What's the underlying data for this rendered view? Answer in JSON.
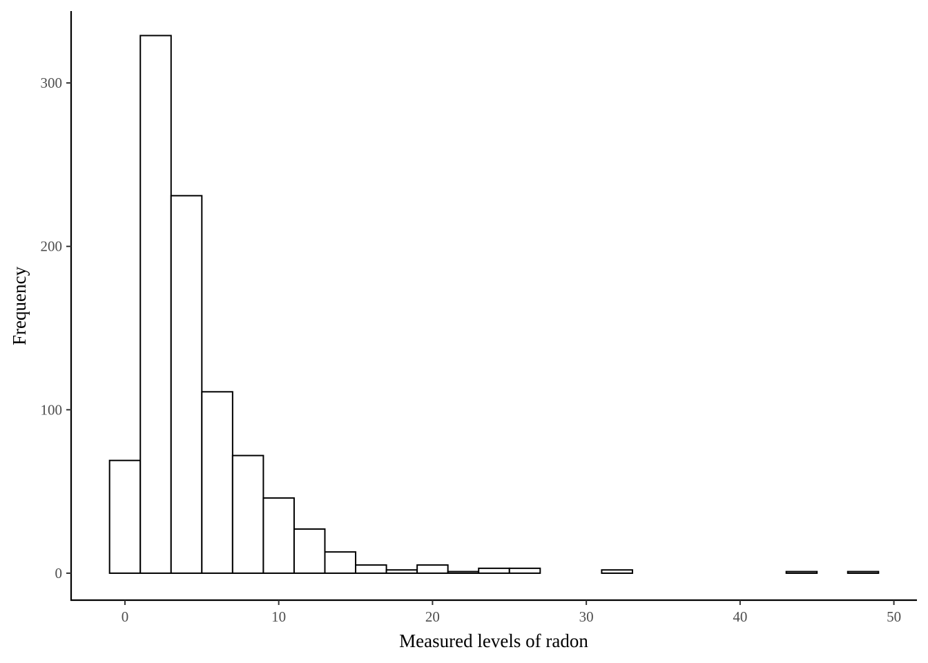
{
  "chart_data": {
    "type": "bar",
    "chart_kind": "histogram",
    "title": "",
    "xlabel": "Measured levels of radon",
    "ylabel": "Frequency",
    "xlim": [
      -3.5,
      51.5
    ],
    "ylim": [
      -16.5,
      344
    ],
    "x_ticks": [
      0,
      10,
      20,
      30,
      40,
      50
    ],
    "x_tick_labels": [
      "0",
      "10",
      "20",
      "30",
      "40",
      "50"
    ],
    "y_ticks": [
      0,
      100,
      200,
      300
    ],
    "y_tick_labels": [
      "0",
      "100",
      "200",
      "300"
    ],
    "bin_width": 2,
    "bins": [
      {
        "x0": -1,
        "x1": 1,
        "count": 69
      },
      {
        "x0": 1,
        "x1": 3,
        "count": 329
      },
      {
        "x0": 3,
        "x1": 5,
        "count": 231
      },
      {
        "x0": 5,
        "x1": 7,
        "count": 111
      },
      {
        "x0": 7,
        "x1": 9,
        "count": 72
      },
      {
        "x0": 9,
        "x1": 11,
        "count": 46
      },
      {
        "x0": 11,
        "x1": 13,
        "count": 27
      },
      {
        "x0": 13,
        "x1": 15,
        "count": 13
      },
      {
        "x0": 15,
        "x1": 17,
        "count": 5
      },
      {
        "x0": 17,
        "x1": 19,
        "count": 2
      },
      {
        "x0": 19,
        "x1": 21,
        "count": 5
      },
      {
        "x0": 21,
        "x1": 23,
        "count": 1
      },
      {
        "x0": 23,
        "x1": 25,
        "count": 3
      },
      {
        "x0": 25,
        "x1": 27,
        "count": 3
      },
      {
        "x0": 27,
        "x1": 29,
        "count": 0
      },
      {
        "x0": 29,
        "x1": 31,
        "count": 0
      },
      {
        "x0": 31,
        "x1": 33,
        "count": 2
      },
      {
        "x0": 33,
        "x1": 35,
        "count": 0
      },
      {
        "x0": 35,
        "x1": 37,
        "count": 0
      },
      {
        "x0": 37,
        "x1": 39,
        "count": 0
      },
      {
        "x0": 39,
        "x1": 41,
        "count": 0
      },
      {
        "x0": 41,
        "x1": 43,
        "count": 0
      },
      {
        "x0": 43,
        "x1": 45,
        "count": 1
      },
      {
        "x0": 45,
        "x1": 47,
        "count": 0
      },
      {
        "x0": 47,
        "x1": 49,
        "count": 1
      }
    ],
    "grid": false,
    "legend": "none",
    "bar_fill": "#ffffff",
    "bar_stroke": "#000000"
  }
}
